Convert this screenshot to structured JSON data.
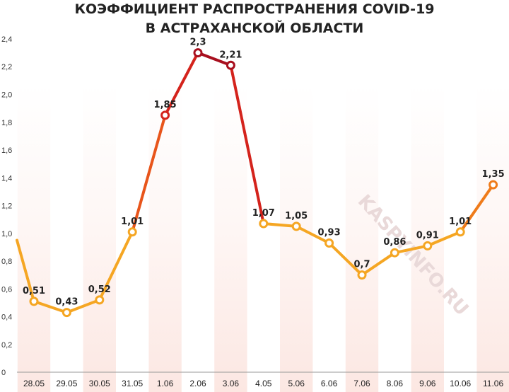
{
  "chart_data": {
    "type": "line",
    "title": "КОЭФФИЦИЕНТ РАСПРОСТРАНЕНИЯ COVID-19",
    "subtitle": "В АСТРАХАНСКОЙ ОБЛАСТИ",
    "xlabel": "",
    "ylabel": "",
    "categories": [
      "28.05",
      "29.05",
      "30.05",
      "31.05",
      "1.06",
      "2.06",
      "3.06",
      "4.05",
      "5.06",
      "6.06",
      "7.06",
      "8.06",
      "9.06",
      "10.06",
      "11.06"
    ],
    "values": [
      0.51,
      0.43,
      0.52,
      1.01,
      1.85,
      2.3,
      2.21,
      1.07,
      1.05,
      0.93,
      0.7,
      0.86,
      0.91,
      1.01,
      1.35
    ],
    "data_labels": [
      "0,51",
      "0,43",
      "0,52",
      "1,01",
      "1,85",
      "2,3",
      "2,21",
      "1,07",
      "1,05",
      "0,93",
      "0,7",
      "0,86",
      "0,91",
      "1,01",
      "1,35"
    ],
    "leading_value": 0.95,
    "ylim": [
      0,
      2.4
    ],
    "yticks": [
      0,
      0.2,
      0.4,
      0.6,
      0.8,
      1.0,
      1.2,
      1.4,
      1.6,
      1.8,
      2.0,
      2.2,
      2.4
    ],
    "ytick_labels": [
      "0",
      "0,2",
      "0,4",
      "0,6",
      "0,8",
      "1,0",
      "1,2",
      "1,4",
      "1,6",
      "1,8",
      "2,0",
      "2,2",
      "2,4"
    ],
    "grid": false,
    "legend": "none",
    "colors": {
      "low": "#f5a623",
      "mid": "#ef7b1a",
      "high": "#d4231c",
      "peak": "#a80f1e",
      "band": "#fce7e2",
      "baseline": "#999999"
    },
    "watermark": "KASPYINFO.RU"
  }
}
